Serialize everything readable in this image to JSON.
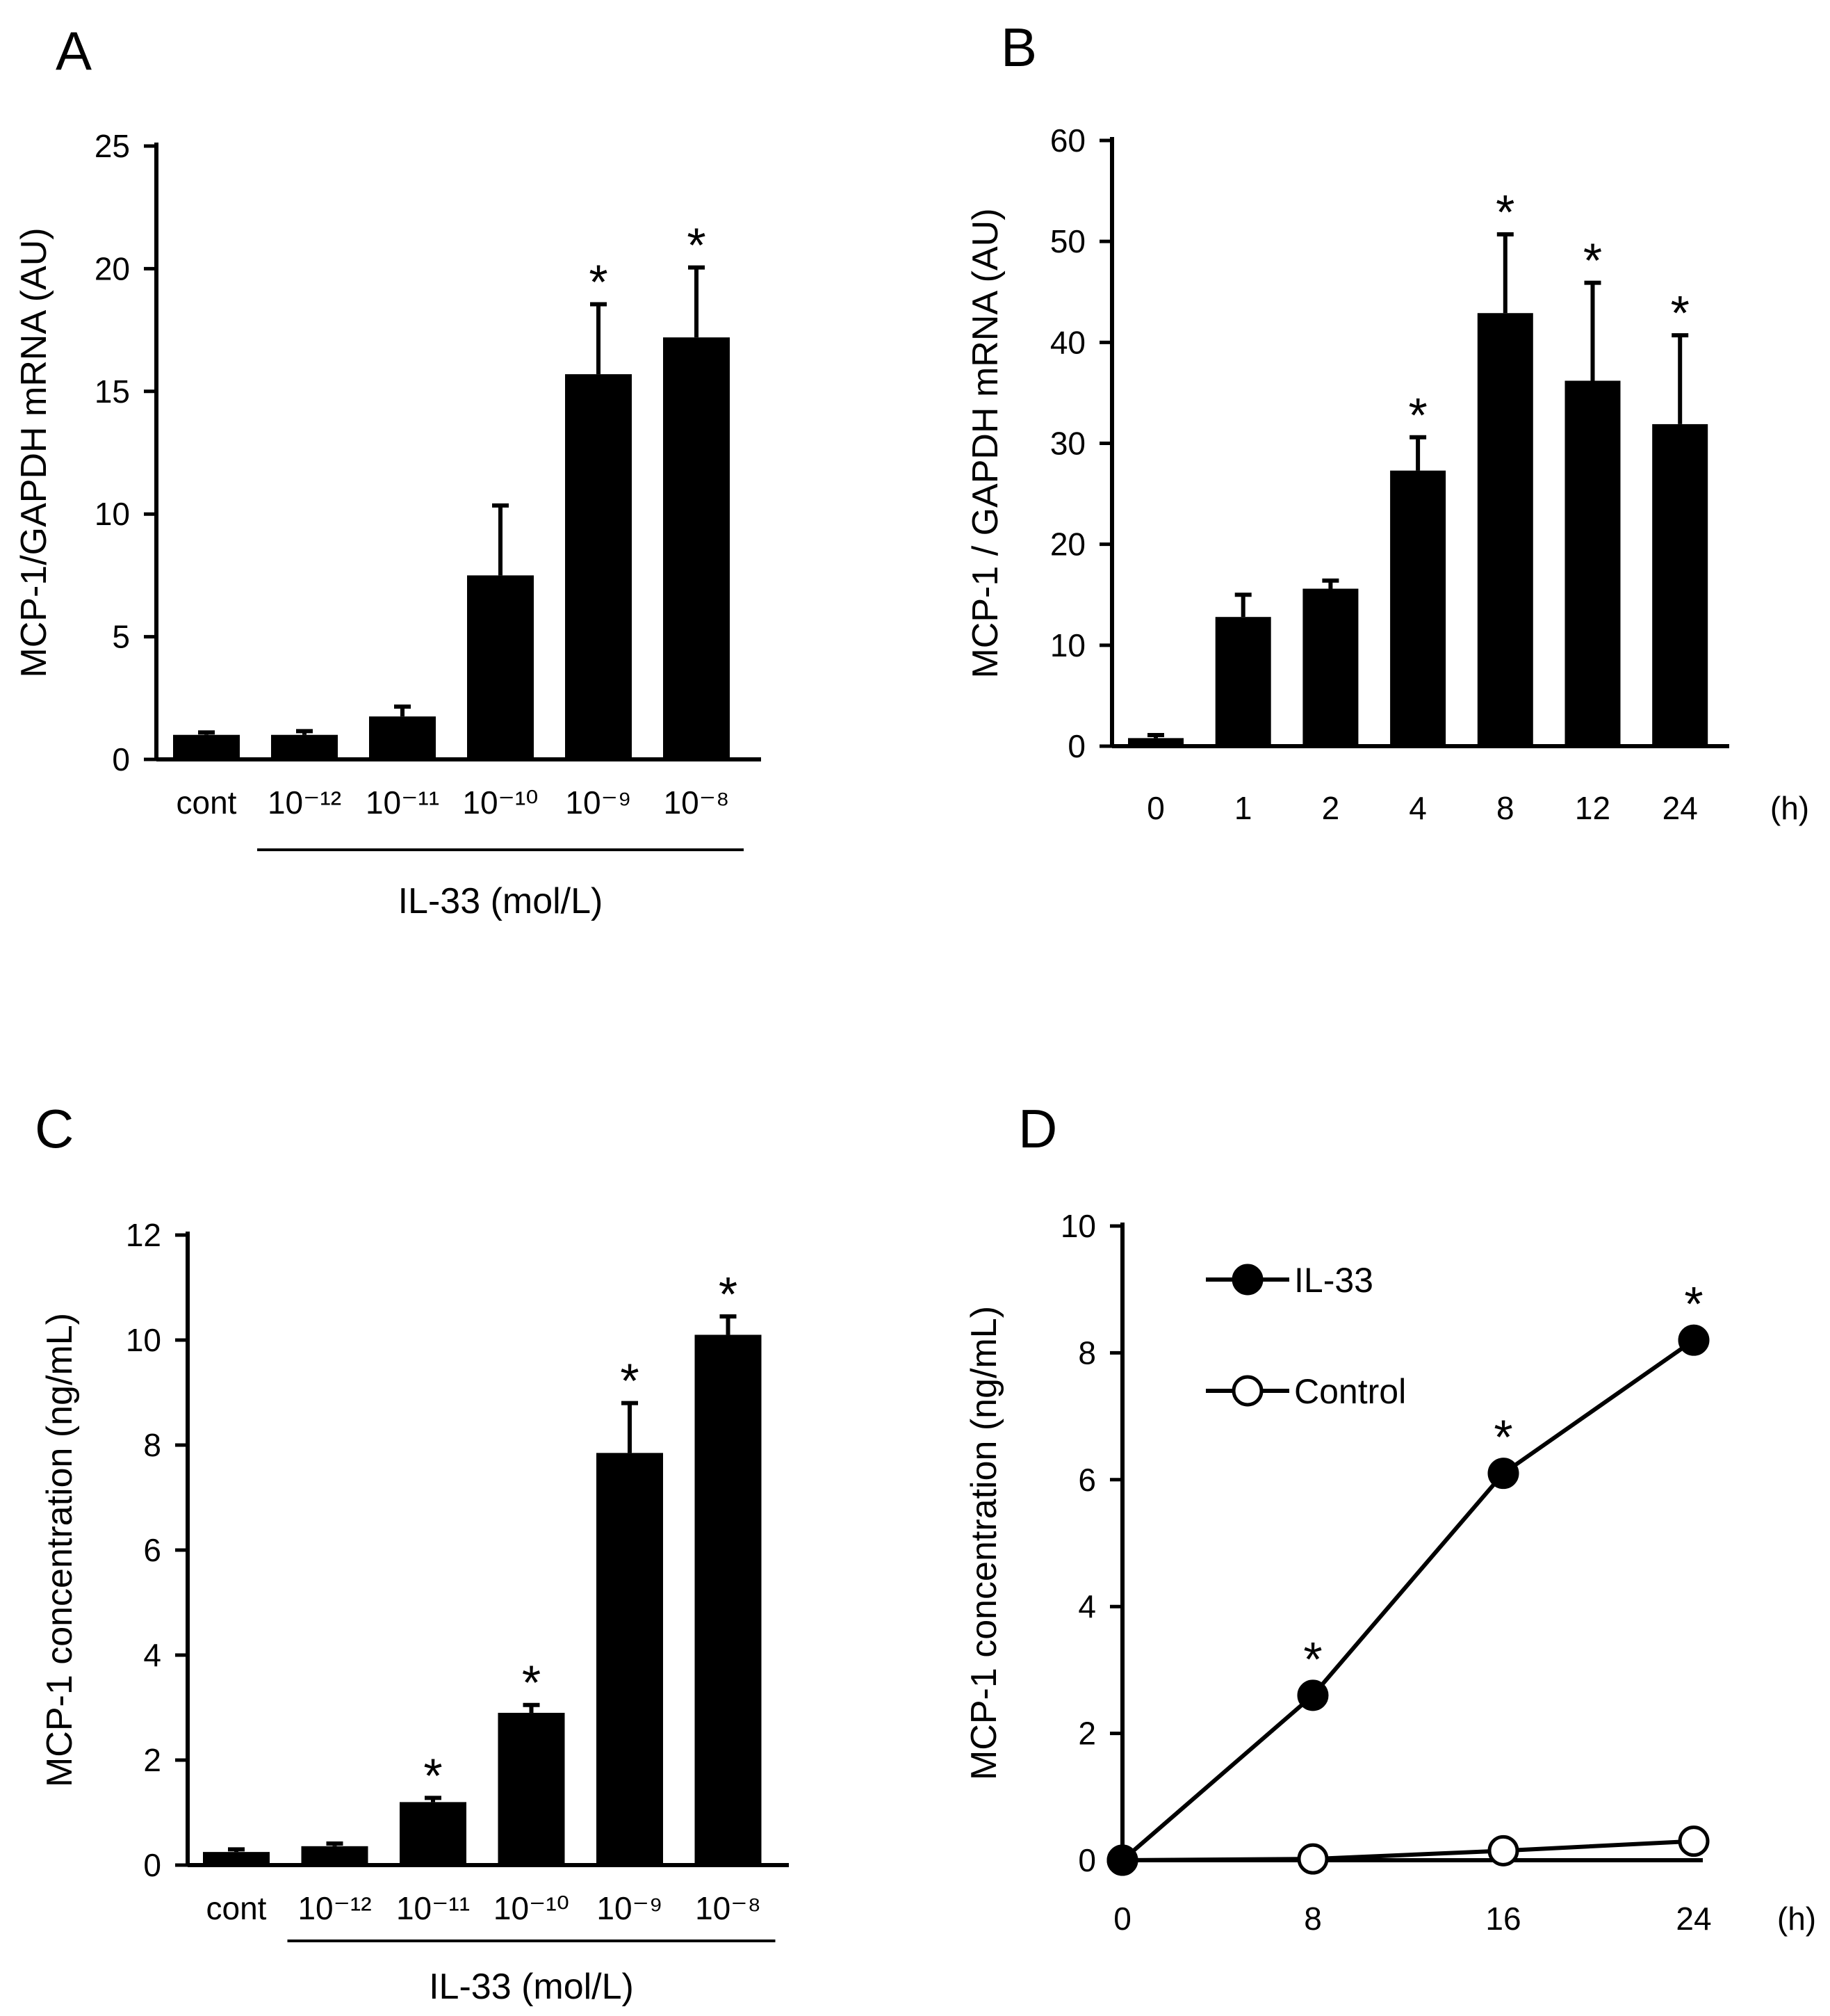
{
  "chart_data": [
    {
      "panel": "A",
      "type": "bar",
      "ylabel": "MCP-1/GAPDH mRNA (AU)",
      "xlabel": "IL-33 (mol/L)",
      "categories": [
        "cont",
        "10⁻¹²",
        "10⁻¹¹",
        "10⁻¹⁰",
        "10⁻⁹",
        "10⁻⁸"
      ],
      "values": [
        1.0,
        1.0,
        1.75,
        7.5,
        15.7,
        17.2
      ],
      "errors": [
        0.1,
        0.15,
        0.4,
        2.85,
        2.85,
        2.85
      ],
      "significant": [
        false,
        false,
        false,
        false,
        true,
        true
      ],
      "yticks": [
        0,
        5,
        10,
        15,
        20,
        25
      ],
      "ylim": [
        0,
        25
      ],
      "group_bar": [
        1,
        5
      ]
    },
    {
      "panel": "B",
      "type": "bar",
      "ylabel": "MCP-1 / GAPDH mRNA (AU)",
      "xunit": "(h)",
      "categories": [
        "0",
        "1",
        "2",
        "4",
        "8",
        "12",
        "24"
      ],
      "values": [
        0.8,
        12.8,
        15.6,
        27.3,
        42.9,
        36.2,
        31.9
      ],
      "errors": [
        0.3,
        2.2,
        0.8,
        3.3,
        7.8,
        9.7,
        8.8
      ],
      "significant": [
        false,
        false,
        false,
        true,
        true,
        true,
        true
      ],
      "yticks": [
        0,
        10,
        20,
        30,
        40,
        50,
        60
      ],
      "ylim": [
        0,
        60
      ]
    },
    {
      "panel": "C",
      "type": "bar",
      "ylabel": "MCP-1 concentration (ng/mL)",
      "xlabel": "IL-33 (mol/L)",
      "categories": [
        "cont",
        "10⁻¹²",
        "10⁻¹¹",
        "10⁻¹⁰",
        "10⁻⁹",
        "10⁻⁸"
      ],
      "values": [
        0.25,
        0.36,
        1.2,
        2.9,
        7.85,
        10.1
      ],
      "errors": [
        0.05,
        0.05,
        0.08,
        0.15,
        0.95,
        0.35
      ],
      "significant": [
        false,
        false,
        true,
        true,
        true,
        true
      ],
      "yticks": [
        0,
        2,
        4,
        6,
        8,
        10,
        12
      ],
      "ylim": [
        0,
        12
      ],
      "group_bar": [
        1,
        5
      ]
    },
    {
      "panel": "D",
      "type": "line",
      "ylabel": "MCP-1 concentration (ng/mL)",
      "xunit": "(h)",
      "x": [
        0,
        8,
        16,
        24
      ],
      "xticks": [
        0,
        8,
        16,
        24
      ],
      "yticks": [
        0,
        2,
        4,
        6,
        8,
        10
      ],
      "ylim": [
        0,
        10
      ],
      "xlim": [
        0,
        24
      ],
      "series": [
        {
          "name": "IL-33",
          "values": [
            0,
            2.6,
            6.1,
            8.2
          ],
          "marker": "filled",
          "significant": [
            false,
            true,
            true,
            true
          ]
        },
        {
          "name": "Control",
          "values": [
            0,
            0.02,
            0.15,
            0.3
          ],
          "marker": "open",
          "significant": [
            false,
            false,
            false,
            false
          ]
        }
      ],
      "legend": "top-left"
    }
  ],
  "colors": {
    "ink": "#000000",
    "background": "#ffffff"
  },
  "significance_marker": "*"
}
